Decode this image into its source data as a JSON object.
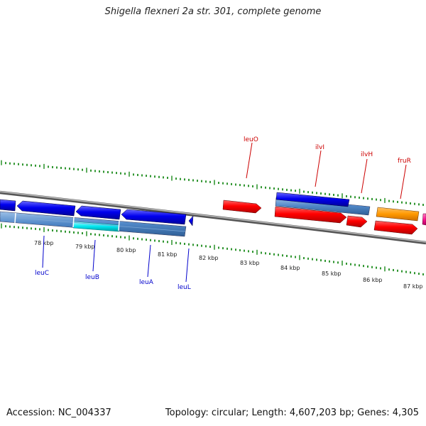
{
  "title": "Shigella flexneri 2a str. 301, complete genome",
  "footer": {
    "accession": "Accession: NC_004337",
    "summary": "Topology: circular; Length: 4,607,203 bp; Genes: 4,305"
  },
  "kbp_labels": [
    "78 kbp",
    "79 kbp",
    "80 kbp",
    "81 kbp",
    "82 kbp",
    "83 kbp",
    "84 kbp",
    "85 kbp",
    "86 kbp",
    "87 kbp"
  ],
  "gene_labels": {
    "upper": [
      {
        "name": "leuO",
        "color": "#cc0000"
      },
      {
        "name": "ilvI",
        "color": "#cc0000"
      },
      {
        "name": "ilvH",
        "color": "#cc0000"
      },
      {
        "name": "fruR",
        "color": "#cc0000"
      }
    ],
    "lower": [
      {
        "name": "leuC",
        "color": "#0000cc"
      },
      {
        "name": "leuB",
        "color": "#0000cc"
      },
      {
        "name": "leuA",
        "color": "#0000cc"
      },
      {
        "name": "leuL",
        "color": "#0000cc"
      }
    ]
  },
  "colors": {
    "forward_gene": "#ff0000",
    "reverse_gene": "#0000ee",
    "cds_track": "#4f86c6",
    "highlight": "#00e5ee",
    "orange_gene": "#ff9900",
    "magenta_gene": "#ff1493",
    "tick": "#1a8a1a",
    "backbone": "#888888"
  }
}
